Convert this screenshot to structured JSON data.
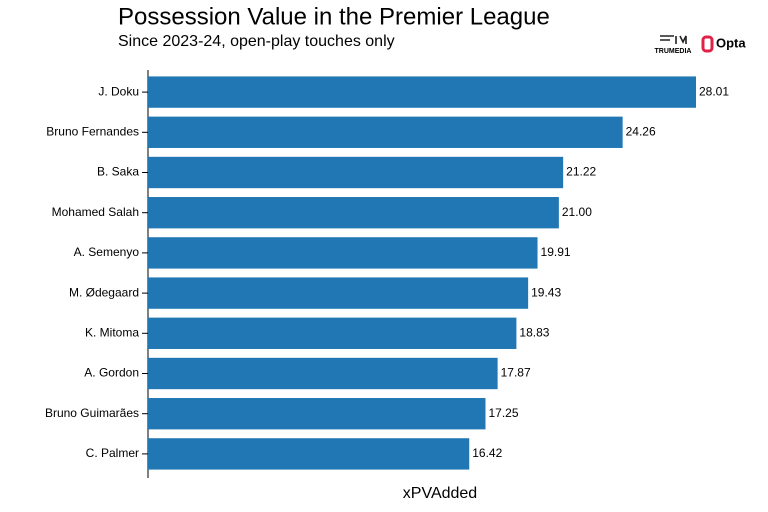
{
  "chart_data": {
    "type": "bar",
    "orientation": "horizontal",
    "title": "Possession Value in the Premier League",
    "subtitle": "Since 2023-24, open-play touches only",
    "x_label": "xPVAdded",
    "logos": [
      "TRUMEDIA",
      "Opta"
    ],
    "categories": [
      "J. Doku",
      "Bruno Fernandes",
      "B. Saka",
      "Mohamed Salah",
      "A. Semenyo",
      "M. Ødegaard",
      "K. Mitoma",
      "A. Gordon",
      "Bruno Guimarães",
      "C. Palmer"
    ],
    "values": [
      28.01,
      24.26,
      21.22,
      21.0,
      19.91,
      19.43,
      18.83,
      17.87,
      17.25,
      16.42
    ],
    "value_labels": [
      "28.01",
      "24.26",
      "21.22",
      "21.00",
      "19.91",
      "19.43",
      "18.83",
      "17.87",
      "17.25",
      "16.42"
    ],
    "color": "#2077b4"
  }
}
